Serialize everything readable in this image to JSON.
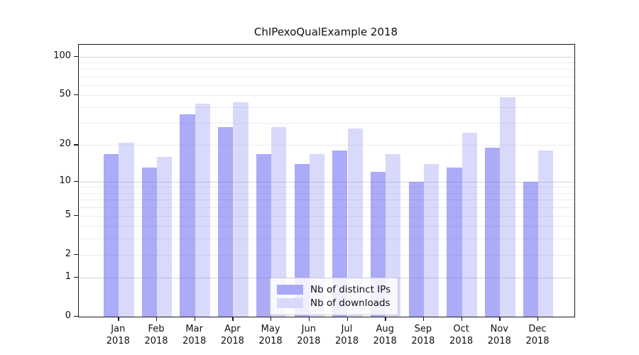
{
  "chart_data": {
    "type": "bar",
    "title": "ChIPexoQualExample 2018",
    "categories": [
      "Jan",
      "Feb",
      "Mar",
      "Apr",
      "May",
      "Jun",
      "Jul",
      "Aug",
      "Sep",
      "Oct",
      "Nov",
      "Dec"
    ],
    "category_year": "2018",
    "series": [
      {
        "name": "Nb of distinct IPs",
        "color": "#a9a9f5",
        "fill": "rgba(102,102,241,0.55)",
        "values": [
          17,
          13,
          35,
          28,
          17,
          14,
          18,
          12,
          10,
          13,
          19,
          10
        ]
      },
      {
        "name": "Nb of downloads",
        "color": "#d9d9fa",
        "fill": "rgba(102,102,241,0.25)",
        "values": [
          21,
          16,
          43,
          44,
          28,
          17,
          27,
          17,
          14,
          25,
          48,
          18
        ]
      }
    ],
    "xlabel": "",
    "ylabel": "",
    "yticks": [
      100,
      50,
      20,
      10,
      5,
      2,
      1,
      0
    ],
    "minor_grid_values": [
      2,
      3,
      4,
      5,
      6,
      7,
      8,
      9,
      20,
      30,
      40,
      50,
      60,
      70,
      80,
      90
    ],
    "major_grid_values": [
      1,
      10,
      100
    ],
    "scale": "log1p",
    "ylim": [
      0,
      100
    ],
    "grid": "on",
    "legend_position": "bottom-center",
    "axis_color": "#1a1a1a",
    "minor_grid_color": "#ececec",
    "major_grid_color": "#d6d6d6"
  }
}
